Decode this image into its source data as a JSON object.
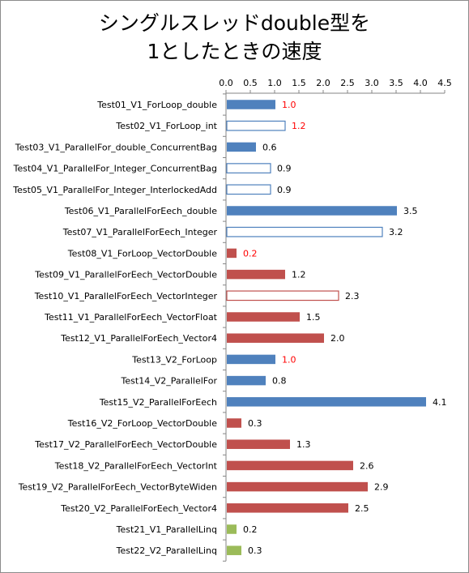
{
  "chart_data": {
    "type": "bar",
    "orientation": "horizontal",
    "title_line1": "シングルスレッドdouble型を",
    "title_line2": "1としたときの速度",
    "xlim": [
      0,
      4.5
    ],
    "x_ticks": [
      "0.0",
      "0.5",
      "1.0",
      "1.5",
      "2.0",
      "2.5",
      "3.0",
      "3.5",
      "4.0",
      "4.5"
    ],
    "x_axis_position": "top",
    "grid": false,
    "legend": "none",
    "colors": {
      "blue": "#4f81bd",
      "red": "#c0504d",
      "green": "#9bbb59",
      "label_default": "#000000",
      "label_highlight": "#ff0000"
    },
    "categories": [
      "Test01_V1_ForLoop_double",
      "Test02_V1_ForLoop_int",
      "Test03_V1_ParallelFor_double_ConcurrentBag",
      "Test04_V1_ParallelFor_Integer_ConcurrentBag",
      "Test05_V1_ParallelFor_Integer_InterlockedAdd",
      "Test06_V1_ParallelForEech_double",
      "Test07_V1_ParallelForEech_Integer",
      "Test08_V1_ForLoop_VectorDouble",
      "Test09_V1_ParallelForEech_VectorDouble",
      "Test10_V1_ParallelForEech_VectorInteger",
      "Test11_V1_ParallelForEech_VectorFloat",
      "Test12_V1_ParallelForEech_Vector4",
      "Test13_V2_ForLoop",
      "Test14_V2_ParallelFor",
      "Test15_V2_ParallelForEech",
      "Test16_V2_ForLoop_VectorDouble",
      "Test17_V2_ParallelForEech_VectorDouble",
      "Test18_V2_ParallelForEech_VectorInt",
      "Test19_V2_ParallelForEech_VectorByteWiden",
      "Test20_V2_ParallelForEech_Vector4",
      "Test21_V1_ParallelLinq",
      "Test22_V2_ParallelLinq"
    ],
    "values": [
      1.0,
      1.2,
      0.6,
      0.9,
      0.9,
      3.5,
      3.2,
      0.2,
      1.2,
      2.3,
      1.5,
      2.0,
      1.0,
      0.8,
      4.1,
      0.3,
      1.3,
      2.6,
      2.9,
      2.5,
      0.2,
      0.3
    ],
    "value_labels": [
      "1.0",
      "1.2",
      "0.6",
      "0.9",
      "0.9",
      "3.5",
      "3.2",
      "0.2",
      "1.2",
      "2.3",
      "1.5",
      "2.0",
      "1.0",
      "0.8",
      "4.1",
      "0.3",
      "1.3",
      "2.6",
      "2.9",
      "2.5",
      "0.2",
      "0.3"
    ],
    "bar_colors": [
      "blue",
      "blue",
      "blue",
      "blue",
      "blue",
      "blue",
      "blue",
      "red",
      "red",
      "red",
      "red",
      "red",
      "blue",
      "blue",
      "blue",
      "red",
      "red",
      "red",
      "red",
      "red",
      "green",
      "green"
    ],
    "bar_hollow": [
      false,
      true,
      false,
      true,
      true,
      false,
      true,
      false,
      false,
      true,
      false,
      false,
      false,
      false,
      false,
      false,
      false,
      false,
      false,
      false,
      false,
      false
    ],
    "label_highlight": [
      true,
      true,
      false,
      false,
      false,
      false,
      false,
      true,
      false,
      false,
      false,
      false,
      true,
      false,
      false,
      false,
      false,
      false,
      false,
      false,
      false,
      false
    ]
  }
}
